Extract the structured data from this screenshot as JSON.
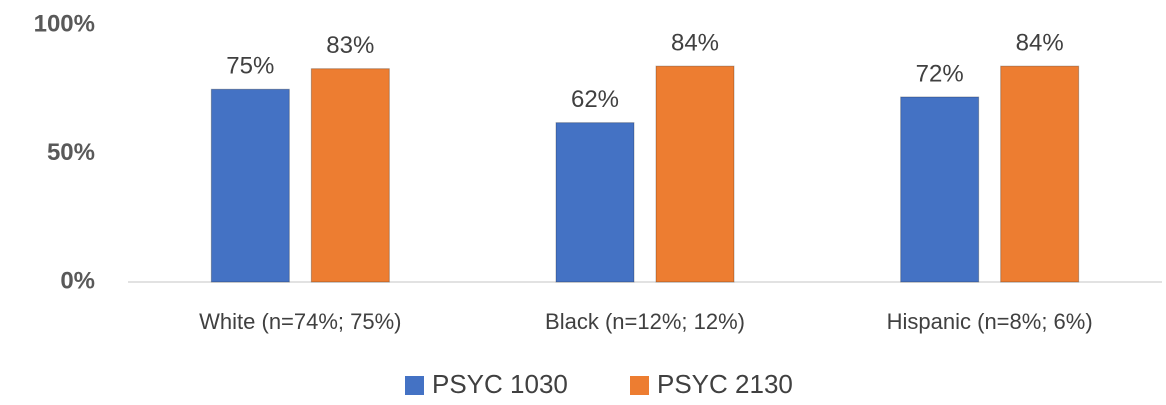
{
  "chart_data": {
    "type": "bar",
    "categories": [
      "White (n=74%; 75%)",
      "Black (n=12%; 12%)",
      "Hispanic (n=8%; 6%)"
    ],
    "series": [
      {
        "name": "PSYC 1030",
        "color": "#4472c4",
        "values": [
          75,
          62,
          72
        ],
        "value_labels": [
          "75%",
          "62%",
          "72%"
        ]
      },
      {
        "name": "PSYC 2130",
        "color": "#ed7d31",
        "values": [
          83,
          84,
          84
        ],
        "value_labels": [
          "83%",
          "84%",
          "84%"
        ]
      }
    ],
    "ylim": [
      0,
      100
    ],
    "yticks": [
      {
        "value": 0,
        "label": "0%"
      },
      {
        "value": 50,
        "label": "50%"
      },
      {
        "value": 100,
        "label": "100%"
      }
    ],
    "grid": false,
    "legend": "bottom"
  }
}
